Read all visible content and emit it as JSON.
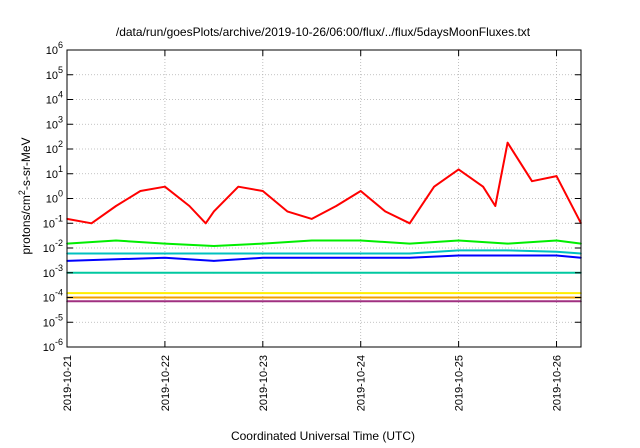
{
  "chart_data": {
    "type": "line",
    "title": "/data/run/goesPlots/archive/2019-10-26/06:00/flux/../flux/5daysMoonFluxes.txt",
    "xlabel": "Coordinated Universal Time (UTC)",
    "ylabel": "protons/cm²-s-sr-MeV",
    "ylabel_base": "protons/cm",
    "ylabel_sup": "2",
    "ylabel_rest": "-s-sr-MeV",
    "yscale": "log",
    "ylim": [
      1e-06,
      1000000.0
    ],
    "ytick_exponents": [
      -6,
      -5,
      -4,
      -3,
      -2,
      -1,
      0,
      1,
      2,
      3,
      4,
      5,
      6
    ],
    "ytick_base": "10",
    "xlim": [
      "2019-10-21T00:00",
      "2019-10-26T06:00"
    ],
    "xticks": [
      "2019-10-21",
      "2019-10-22",
      "2019-10-23",
      "2019-10-24",
      "2019-10-25",
      "2019-10-26"
    ],
    "grid": true,
    "colors": {
      "red": "#ff0000",
      "green": "#00ee00",
      "blue": "#0000ff",
      "cyan": "#00c0c0",
      "teal": "#00c8a0",
      "yellow": "#ffee00",
      "orange": "#f0a000",
      "purple": "#a03080"
    },
    "series": [
      {
        "color": "#ff0000",
        "x": [
          "2019-10-21T00:00",
          "2019-10-21T06:00",
          "2019-10-21T12:00",
          "2019-10-21T18:00",
          "2019-10-22T00:00",
          "2019-10-22T06:00",
          "2019-10-22T10:00",
          "2019-10-22T12:00",
          "2019-10-22T18:00",
          "2019-10-23T00:00",
          "2019-10-23T06:00",
          "2019-10-23T12:00",
          "2019-10-23T18:00",
          "2019-10-24T00:00",
          "2019-10-24T06:00",
          "2019-10-24T12:00",
          "2019-10-24T18:00",
          "2019-10-25T00:00",
          "2019-10-25T06:00",
          "2019-10-25T09:00",
          "2019-10-25T12:00",
          "2019-10-25T18:00",
          "2019-10-26T00:00",
          "2019-10-26T06:00"
        ],
        "y": [
          0.15,
          0.1,
          0.5,
          2,
          3,
          0.5,
          0.1,
          0.3,
          3,
          2,
          0.3,
          0.15,
          0.5,
          2,
          0.3,
          0.1,
          3,
          15,
          3,
          0.5,
          180,
          5,
          8,
          0.1
        ]
      },
      {
        "color": "#00ee00",
        "x": [
          "2019-10-21T00:00",
          "2019-10-21T12:00",
          "2019-10-22T00:00",
          "2019-10-22T12:00",
          "2019-10-23T00:00",
          "2019-10-23T12:00",
          "2019-10-24T00:00",
          "2019-10-24T12:00",
          "2019-10-25T00:00",
          "2019-10-25T12:00",
          "2019-10-26T00:00",
          "2019-10-26T06:00"
        ],
        "y": [
          0.015,
          0.02,
          0.015,
          0.012,
          0.015,
          0.02,
          0.02,
          0.015,
          0.02,
          0.015,
          0.02,
          0.015
        ]
      },
      {
        "color": "#0000ff",
        "x": [
          "2019-10-21T00:00",
          "2019-10-21T12:00",
          "2019-10-22T00:00",
          "2019-10-22T12:00",
          "2019-10-23T00:00",
          "2019-10-23T12:00",
          "2019-10-24T00:00",
          "2019-10-24T12:00",
          "2019-10-25T00:00",
          "2019-10-25T12:00",
          "2019-10-26T00:00",
          "2019-10-26T06:00"
        ],
        "y": [
          0.003,
          0.0035,
          0.004,
          0.003,
          0.004,
          0.004,
          0.004,
          0.004,
          0.005,
          0.005,
          0.005,
          0.004
        ]
      },
      {
        "color": "#00c0c0",
        "x": [
          "2019-10-21T00:00",
          "2019-10-21T12:00",
          "2019-10-22T00:00",
          "2019-10-22T12:00",
          "2019-10-23T00:00",
          "2019-10-23T12:00",
          "2019-10-24T00:00",
          "2019-10-24T12:00",
          "2019-10-25T00:00",
          "2019-10-25T12:00",
          "2019-10-26T00:00",
          "2019-10-26T06:00"
        ],
        "y": [
          0.006,
          0.006,
          0.006,
          0.006,
          0.006,
          0.006,
          0.006,
          0.006,
          0.008,
          0.008,
          0.007,
          0.006
        ]
      },
      {
        "color": "#00c8a0",
        "x": [
          "2019-10-21T00:00",
          "2019-10-21T12:00",
          "2019-10-22T00:00",
          "2019-10-22T12:00",
          "2019-10-23T00:00",
          "2019-10-23T12:00",
          "2019-10-24T00:00",
          "2019-10-24T12:00",
          "2019-10-25T00:00",
          "2019-10-25T12:00",
          "2019-10-26T00:00",
          "2019-10-26T06:00"
        ],
        "y": [
          0.001,
          0.001,
          0.001,
          0.001,
          0.001,
          0.001,
          0.001,
          0.001,
          0.001,
          0.001,
          0.001,
          0.001
        ]
      },
      {
        "color": "#ffee00",
        "x": [
          "2019-10-21T00:00",
          "2019-10-21T12:00",
          "2019-10-22T00:00",
          "2019-10-22T12:00",
          "2019-10-23T00:00",
          "2019-10-23T12:00",
          "2019-10-24T00:00",
          "2019-10-24T12:00",
          "2019-10-25T00:00",
          "2019-10-25T12:00",
          "2019-10-26T00:00",
          "2019-10-26T06:00"
        ],
        "y": [
          0.00015,
          0.00015,
          0.00015,
          0.00015,
          0.00015,
          0.00015,
          0.00015,
          0.00015,
          0.00015,
          0.00015,
          0.00015,
          0.00015
        ]
      },
      {
        "color": "#f0a000",
        "x": [
          "2019-10-21T00:00",
          "2019-10-21T12:00",
          "2019-10-22T00:00",
          "2019-10-22T12:00",
          "2019-10-23T00:00",
          "2019-10-23T12:00",
          "2019-10-24T00:00",
          "2019-10-24T12:00",
          "2019-10-25T00:00",
          "2019-10-25T12:00",
          "2019-10-26T00:00",
          "2019-10-26T06:00"
        ],
        "y": [
          0.0001,
          0.0001,
          0.0001,
          0.0001,
          0.0001,
          0.0001,
          0.0001,
          0.0001,
          0.0001,
          0.0001,
          0.0001,
          0.0001
        ]
      },
      {
        "color": "#a03080",
        "x": [
          "2019-10-21T00:00",
          "2019-10-21T12:00",
          "2019-10-22T00:00",
          "2019-10-22T12:00",
          "2019-10-23T00:00",
          "2019-10-23T12:00",
          "2019-10-24T00:00",
          "2019-10-24T12:00",
          "2019-10-25T00:00",
          "2019-10-25T12:00",
          "2019-10-26T00:00",
          "2019-10-26T06:00"
        ],
        "y": [
          7e-05,
          7e-05,
          7e-05,
          7e-05,
          7e-05,
          7e-05,
          7e-05,
          7e-05,
          7e-05,
          7e-05,
          7e-05,
          7e-05
        ]
      }
    ]
  }
}
